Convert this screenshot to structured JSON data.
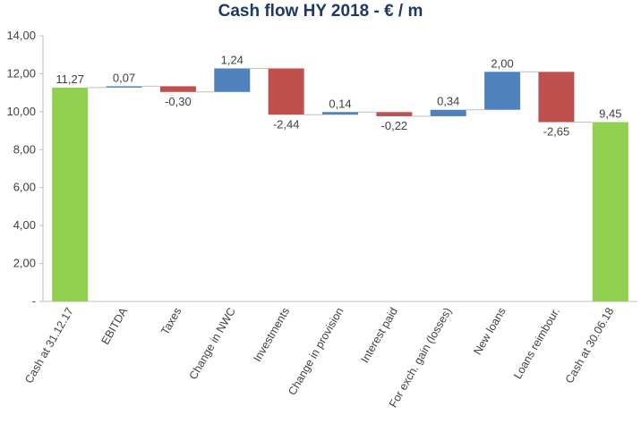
{
  "chart_data": {
    "type": "bar",
    "subtype": "waterfall",
    "title": "Cash flow HY 2018 - € / m",
    "categories": [
      "Cash at 31.12.17",
      "EBITDA",
      "Taxes",
      "Change in NWC",
      "Investments",
      "Change in provision",
      "Interest paid",
      "For exch. gain (losses)",
      "New loans",
      "Loans reimbour.",
      "Cash at 30.06.18"
    ],
    "values": [
      11.27,
      0.07,
      -0.3,
      1.24,
      -2.44,
      0.14,
      -0.22,
      0.34,
      2.0,
      -2.65,
      9.45
    ],
    "kinds": [
      "total",
      "delta",
      "delta",
      "delta",
      "delta",
      "delta",
      "delta",
      "delta",
      "delta",
      "delta",
      "total"
    ],
    "value_labels": [
      "11,27",
      "0,07",
      "-0,30",
      "1,24",
      "-2,44",
      "0,14",
      "-0,22",
      "0,34",
      "2,00",
      "-2,65",
      "9,45"
    ],
    "y_ticks": [
      0,
      2,
      4,
      6,
      8,
      10,
      12,
      14
    ],
    "y_tick_labels": [
      "-",
      "2,00",
      "4,00",
      "6,00",
      "8,00",
      "10,00",
      "12,00",
      "14,00"
    ],
    "ylim": [
      0,
      14
    ],
    "xlabel": "",
    "ylabel": "",
    "grid": false,
    "legend": "none",
    "colors": {
      "total": "#92d050",
      "increase": "#4f81bd",
      "decrease": "#c0504d",
      "connector": "#bfbfbf",
      "axis": "#bfbfbf",
      "title": "#1f3864",
      "text": "#404040"
    }
  }
}
